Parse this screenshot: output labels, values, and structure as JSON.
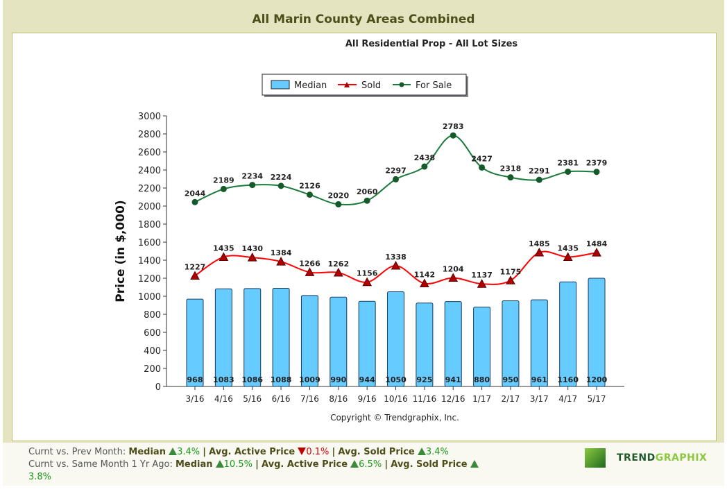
{
  "title": "All Marin County Areas Combined",
  "footer": {
    "line1": {
      "label": "Curnt vs. Prev Month:",
      "median_label": "Median",
      "median": "3.4%",
      "median_dir": "up",
      "active_label": "Avg. Active Price",
      "active": "0.1%",
      "active_dir": "down",
      "sold_label": "Avg. Sold Price",
      "sold": "3.4%",
      "sold_dir": "up"
    },
    "line2": {
      "label": "Curnt vs. Same Month 1 Yr Ago:",
      "median_label": "Median",
      "median": "10.5%",
      "median_dir": "up",
      "active_label": "Avg. Active Price",
      "active": "6.5%",
      "active_dir": "up",
      "sold_label": "Avg. Sold Price",
      "sold": "3.8%",
      "sold_dir": "up"
    },
    "sep": "|"
  },
  "logo": {
    "text_a": "TREND",
    "text_b": "GRAPHIX"
  },
  "chart_data": {
    "type": "bar+line",
    "title": "All Residential Prop - All Lot Sizes",
    "ylabel": "Price (in $,000)",
    "xlabel": "",
    "copyright": "Copyright © Trendgraphix, Inc.",
    "ylim": [
      0,
      3000
    ],
    "yticks": [
      0,
      200,
      400,
      600,
      800,
      1000,
      1200,
      1400,
      1600,
      1800,
      2000,
      2200,
      2400,
      2600,
      2800,
      3000
    ],
    "legend_position": "top-center",
    "categories": [
      "3/16",
      "4/16",
      "5/16",
      "6/16",
      "7/16",
      "8/16",
      "9/16",
      "10/16",
      "11/16",
      "12/16",
      "1/17",
      "2/17",
      "3/17",
      "4/17",
      "5/17"
    ],
    "series": [
      {
        "name": "Median",
        "type": "bar",
        "color": "#66ccff",
        "values": [
          968,
          1083,
          1086,
          1088,
          1009,
          990,
          944,
          1050,
          925,
          941,
          880,
          950,
          961,
          1160,
          1200
        ]
      },
      {
        "name": "Sold",
        "type": "line",
        "color": "#ff0000",
        "marker": "triangle",
        "marker_color": "#b00000",
        "values": [
          1227,
          1435,
          1430,
          1384,
          1266,
          1262,
          1156,
          1338,
          1142,
          1204,
          1137,
          1175,
          1485,
          1435,
          1484
        ]
      },
      {
        "name": "For Sale",
        "type": "line",
        "color": "#1a7a3a",
        "marker": "circle",
        "marker_color": "#145a2a",
        "values": [
          2044,
          2189,
          2234,
          2224,
          2126,
          2020,
          2060,
          2297,
          2438,
          2783,
          2427,
          2318,
          2291,
          2381,
          2379
        ]
      }
    ]
  }
}
